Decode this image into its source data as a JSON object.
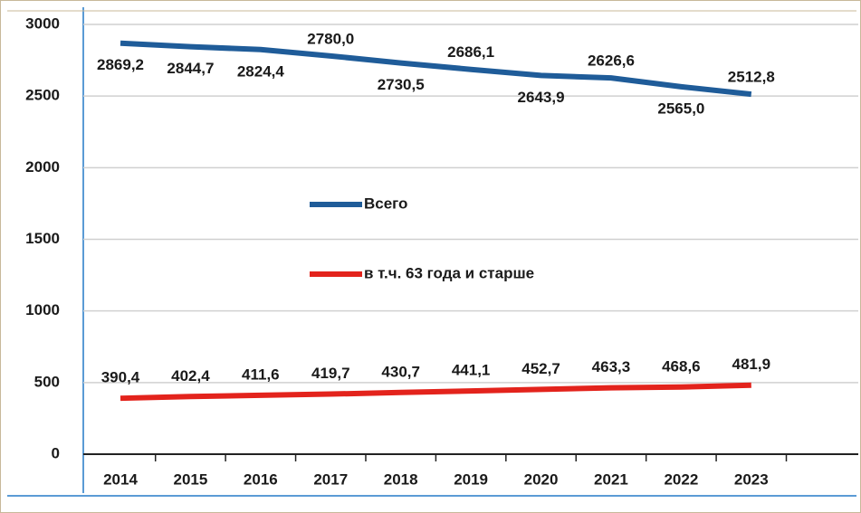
{
  "chart_data": {
    "type": "line",
    "categories": [
      "2014",
      "2015",
      "2016",
      "2017",
      "2018",
      "2019",
      "2020",
      "2021",
      "2022",
      "2023"
    ],
    "series": [
      {
        "name": "Всего",
        "color": "#1f5c99",
        "values": [
          2869.2,
          2844.7,
          2824.4,
          2780.0,
          2730.5,
          2686.1,
          2643.9,
          2626.6,
          2565.0,
          2512.8
        ],
        "value_labels": [
          "2869,2",
          "2844,7",
          "2824,4",
          "2780,0",
          "2730,5",
          "2686,1",
          "2643,9",
          "2626,6",
          "2565,0",
          "2512,8"
        ]
      },
      {
        "name": "в т.ч. 63 года и старше",
        "color": "#e3231c",
        "values": [
          390.4,
          402.4,
          411.6,
          419.7,
          430.7,
          441.1,
          452.7,
          463.3,
          468.6,
          481.9
        ],
        "value_labels": [
          "390,4",
          "402,4",
          "411,6",
          "419,7",
          "430,7",
          "441,1",
          "452,7",
          "463,3",
          "468,6",
          "481,9"
        ]
      }
    ],
    "ylim": [
      0,
      3000
    ],
    "yticks": [
      0,
      500,
      1000,
      1500,
      2000,
      2500,
      3000
    ],
    "grid": true
  }
}
